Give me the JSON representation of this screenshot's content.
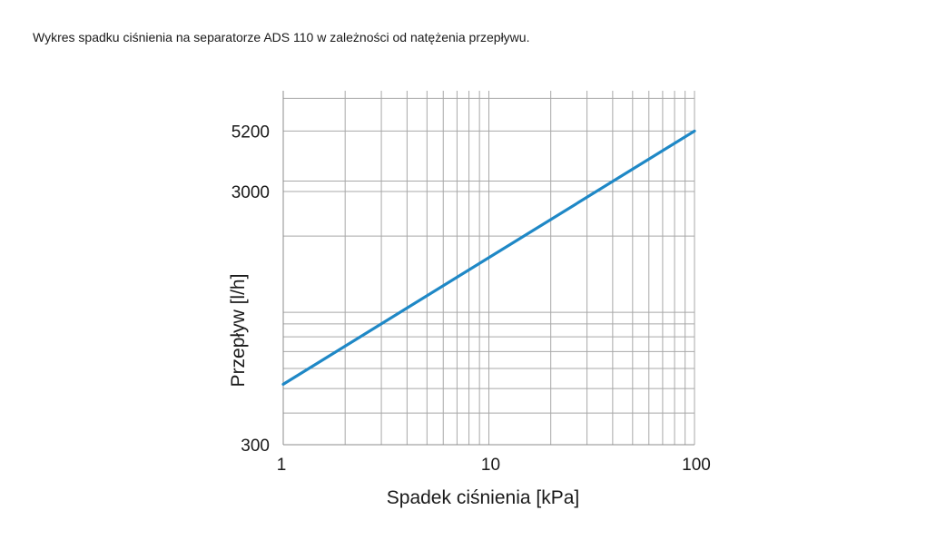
{
  "caption": "Wykres spadku ciśnienia na separatorze ADS 110 w zależności od natężenia przepływu.",
  "chart_data": {
    "type": "line",
    "xlabel": "Spadek ciśnienia [kPa]",
    "ylabel": "Przepływ [l/h]",
    "x_scale": "log",
    "y_scale": "log",
    "xlim": [
      1,
      100
    ],
    "ylim": [
      300,
      7500
    ],
    "x_ticks": [
      1,
      10,
      100
    ],
    "x_tick_labels": [
      "1",
      "10",
      "100"
    ],
    "y_ticks": [
      300,
      3000,
      5200
    ],
    "y_tick_labels": [
      "300",
      "3000",
      "5200"
    ],
    "grid": true,
    "series": [
      {
        "color": "#1f88c6",
        "x": [
          1,
          100
        ],
        "y": [
          520,
          5200
        ]
      }
    ]
  }
}
